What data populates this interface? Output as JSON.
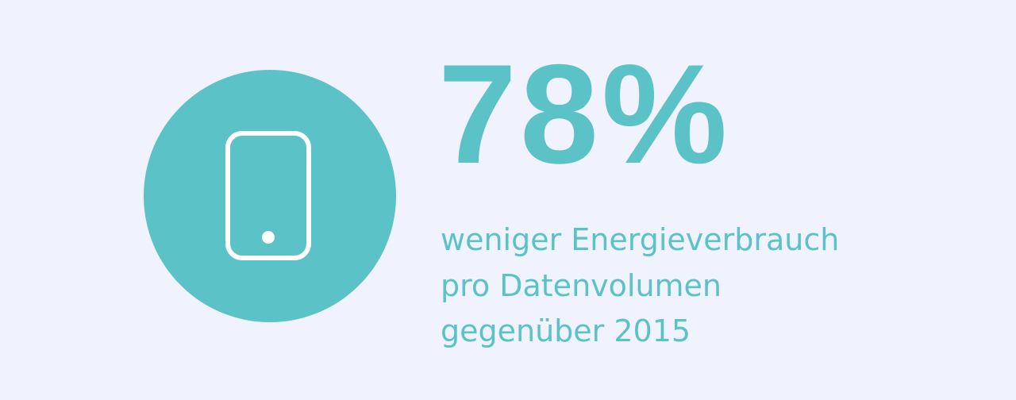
{
  "stat": {
    "value": "78%",
    "description": [
      "weniger Energieverbrauch",
      "pro Datenvolumen",
      "gegenüber 2015"
    ]
  }
}
